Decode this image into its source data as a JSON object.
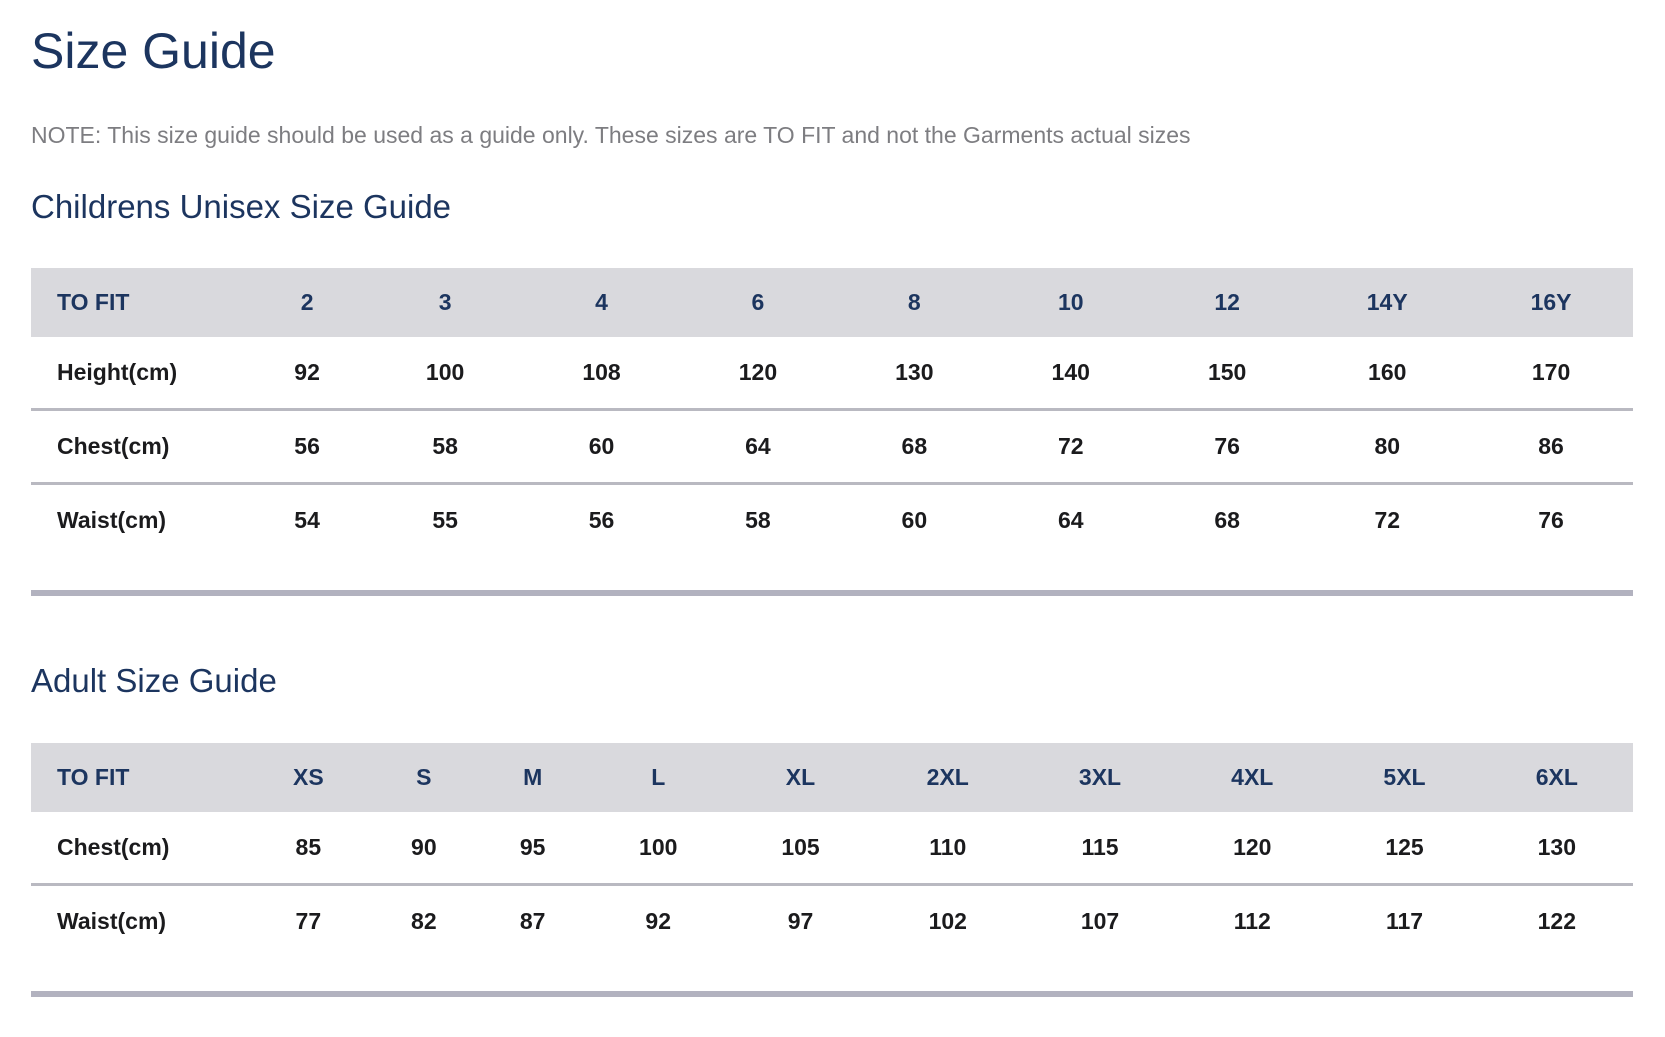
{
  "page": {
    "title": "Size Guide",
    "note": "NOTE: This size guide should be used as a guide only. These sizes are TO FIT and not the Garments actual sizes"
  },
  "colors": {
    "heading": "#1c355f",
    "note_text": "#7d7d81",
    "table_header_bg": "#d9d9dd",
    "table_header_text": "#1c355f",
    "cell_text": "#1b1b1d",
    "row_divider": "#b9b9c1",
    "table_bottom_border": "#b2b2bf",
    "page_bg": "#ffffff"
  },
  "tables": [
    {
      "id": "children",
      "title": "Childrens Unisex Size Guide",
      "header": [
        "TO FIT",
        "2",
        "3",
        "4",
        "6",
        "8",
        "10",
        "12",
        "14Y",
        "16Y"
      ],
      "rows": [
        {
          "label": "Height(cm)",
          "values": [
            "92",
            "100",
            "108",
            "120",
            "130",
            "140",
            "150",
            "160",
            "170"
          ]
        },
        {
          "label": "Chest(cm)",
          "values": [
            "56",
            "58",
            "60",
            "64",
            "68",
            "72",
            "76",
            "80",
            "86"
          ]
        },
        {
          "label": "Waist(cm)",
          "values": [
            "54",
            "55",
            "56",
            "58",
            "60",
            "64",
            "68",
            "72",
            "76"
          ]
        }
      ]
    },
    {
      "id": "adult",
      "title": "Adult Size Guide",
      "header": [
        "TO FIT",
        "XS",
        "S",
        "M",
        "L",
        "XL",
        "2XL",
        "3XL",
        "4XL",
        "5XL",
        "6XL"
      ],
      "rows": [
        {
          "label": "Chest(cm)",
          "values": [
            "85",
            "90",
            "95",
            "100",
            "105",
            "110",
            "115",
            "120",
            "125",
            "130"
          ]
        },
        {
          "label": "Waist(cm)",
          "values": [
            "77",
            "82",
            "87",
            "92",
            "97",
            "102",
            "107",
            "112",
            "117",
            "122"
          ]
        }
      ]
    }
  ]
}
